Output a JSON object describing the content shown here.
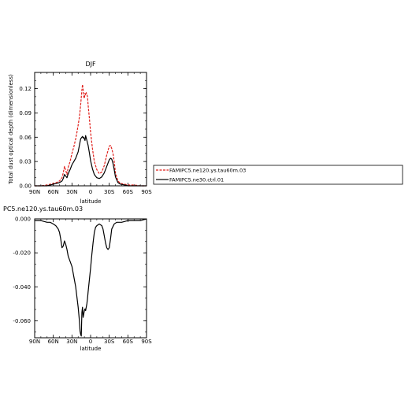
{
  "chart_data": [
    {
      "type": "line",
      "title": "DJF",
      "xlabel": "latitude",
      "ylabel": "Total dust optical depth (dimensionless)",
      "xlim": [
        -90,
        90
      ],
      "ylim": [
        0,
        0.14
      ],
      "x_ticks": [
        {
          "value": -90,
          "label": "90N"
        },
        {
          "value": -60,
          "label": "60N"
        },
        {
          "value": -30,
          "label": "30N"
        },
        {
          "value": 0,
          "label": "0"
        },
        {
          "value": 30,
          "label": "30S"
        },
        {
          "value": 60,
          "label": "60S"
        },
        {
          "value": 90,
          "label": "90S"
        }
      ],
      "y_ticks": [
        {
          "value": 0,
          "label": "0.00"
        },
        {
          "value": 0.03,
          "label": "0.03"
        },
        {
          "value": 0.06,
          "label": "0.06"
        },
        {
          "value": 0.09,
          "label": "0.09"
        },
        {
          "value": 0.12,
          "label": "0.12"
        }
      ],
      "legend_position": "right",
      "series": [
        {
          "name": "FAMIPC5.ne120.ys.tau60m.03",
          "color": "#e0201c",
          "style": "dashed",
          "x": [
            -90,
            -80,
            -70,
            -65,
            -60,
            -55,
            -50,
            -46,
            -44,
            -42,
            -40,
            -38,
            -36,
            -33,
            -30,
            -27,
            -24,
            -22,
            -20,
            -18,
            -16,
            -14,
            -13,
            -12,
            -11,
            -10,
            -9,
            -8,
            -7,
            -6,
            -5,
            -4,
            -2,
            0,
            3,
            6,
            10,
            14,
            18,
            22,
            26,
            30,
            32,
            34,
            36,
            38,
            40,
            44,
            48,
            55,
            60,
            70,
            80,
            90
          ],
          "values": [
            0.0,
            0.0,
            0.001,
            0.002,
            0.003,
            0.004,
            0.006,
            0.01,
            0.016,
            0.024,
            0.019,
            0.014,
            0.023,
            0.03,
            0.04,
            0.048,
            0.058,
            0.066,
            0.075,
            0.085,
            0.1,
            0.118,
            0.125,
            0.119,
            0.11,
            0.108,
            0.114,
            0.112,
            0.115,
            0.113,
            0.11,
            0.1,
            0.084,
            0.066,
            0.046,
            0.03,
            0.02,
            0.015,
            0.017,
            0.025,
            0.038,
            0.049,
            0.05,
            0.046,
            0.04,
            0.03,
            0.016,
            0.006,
            0.003,
            0.002,
            0.001,
            0.001,
            0.0,
            0.0
          ]
        },
        {
          "name": "FAMIPC5.ne30.ctrl.01",
          "color": "#000000",
          "style": "solid",
          "x": [
            -90,
            -80,
            -70,
            -65,
            -60,
            -55,
            -50,
            -46,
            -44,
            -42,
            -40,
            -38,
            -36,
            -33,
            -30,
            -27,
            -24,
            -22,
            -20,
            -18,
            -16,
            -14,
            -13,
            -12,
            -11,
            -10,
            -9,
            -8,
            -7,
            -6,
            -5,
            -4,
            -2,
            0,
            3,
            6,
            10,
            14,
            18,
            22,
            26,
            30,
            32,
            34,
            36,
            38,
            40,
            44,
            48,
            55,
            60,
            70,
            80,
            90
          ],
          "values": [
            0.0,
            0.0,
            0.0,
            0.001,
            0.002,
            0.003,
            0.004,
            0.006,
            0.009,
            0.014,
            0.012,
            0.01,
            0.015,
            0.02,
            0.026,
            0.03,
            0.034,
            0.038,
            0.042,
            0.05,
            0.058,
            0.06,
            0.061,
            0.059,
            0.06,
            0.058,
            0.056,
            0.062,
            0.059,
            0.056,
            0.053,
            0.05,
            0.041,
            0.031,
            0.021,
            0.014,
            0.01,
            0.009,
            0.011,
            0.016,
            0.024,
            0.032,
            0.034,
            0.033,
            0.028,
            0.02,
            0.011,
            0.004,
            0.002,
            0.001,
            0.0,
            0.0,
            0.0,
            0.0
          ]
        }
      ]
    },
    {
      "type": "line",
      "title": "PC5.ne120.ys.tau60m.03",
      "xlabel": "latitude",
      "ylabel": "",
      "xlim": [
        -90,
        90
      ],
      "ylim": [
        -0.07,
        0.0
      ],
      "x_ticks": [
        {
          "value": -90,
          "label": "90N"
        },
        {
          "value": -60,
          "label": "60N"
        },
        {
          "value": -30,
          "label": "30N"
        },
        {
          "value": 0,
          "label": "0"
        },
        {
          "value": 30,
          "label": "30S"
        },
        {
          "value": 60,
          "label": "60S"
        },
        {
          "value": 90,
          "label": "90S"
        }
      ],
      "y_ticks": [
        {
          "value": 0.0,
          "label": "0.000"
        },
        {
          "value": -0.02,
          "label": "-0.020"
        },
        {
          "value": -0.04,
          "label": "-0.040"
        },
        {
          "value": -0.06,
          "label": "-0.060"
        }
      ],
      "series": [
        {
          "color": "#000000",
          "style": "solid",
          "x": [
            -90,
            -80,
            -70,
            -65,
            -60,
            -56,
            -52,
            -50,
            -48,
            -46,
            -44,
            -42,
            -40,
            -38,
            -36,
            -34,
            -32,
            -30,
            -28,
            -26,
            -24,
            -22,
            -20,
            -18,
            -17,
            -16,
            -15,
            -14,
            -13,
            -12,
            -11,
            -10,
            -9,
            -8,
            -7,
            -6,
            -5,
            -4,
            -2,
            0,
            2,
            4,
            6,
            8,
            10,
            14,
            18,
            20,
            22,
            24,
            26,
            28,
            30,
            32,
            34,
            38,
            42,
            50,
            60,
            70,
            80,
            90
          ],
          "values": [
            -0.001,
            -0.001,
            -0.002,
            -0.002,
            -0.003,
            -0.004,
            -0.006,
            -0.008,
            -0.012,
            -0.017,
            -0.016,
            -0.013,
            -0.015,
            -0.018,
            -0.022,
            -0.024,
            -0.026,
            -0.028,
            -0.032,
            -0.036,
            -0.04,
            -0.046,
            -0.052,
            -0.06,
            -0.066,
            -0.068,
            -0.069,
            -0.055,
            -0.052,
            -0.058,
            -0.056,
            -0.054,
            -0.053,
            -0.054,
            -0.052,
            -0.05,
            -0.047,
            -0.043,
            -0.036,
            -0.029,
            -0.021,
            -0.014,
            -0.008,
            -0.005,
            -0.004,
            -0.003,
            -0.004,
            -0.006,
            -0.01,
            -0.014,
            -0.017,
            -0.018,
            -0.017,
            -0.012,
            -0.006,
            -0.003,
            -0.002,
            -0.002,
            -0.001,
            -0.001,
            -0.001,
            0.0
          ]
        }
      ]
    }
  ]
}
